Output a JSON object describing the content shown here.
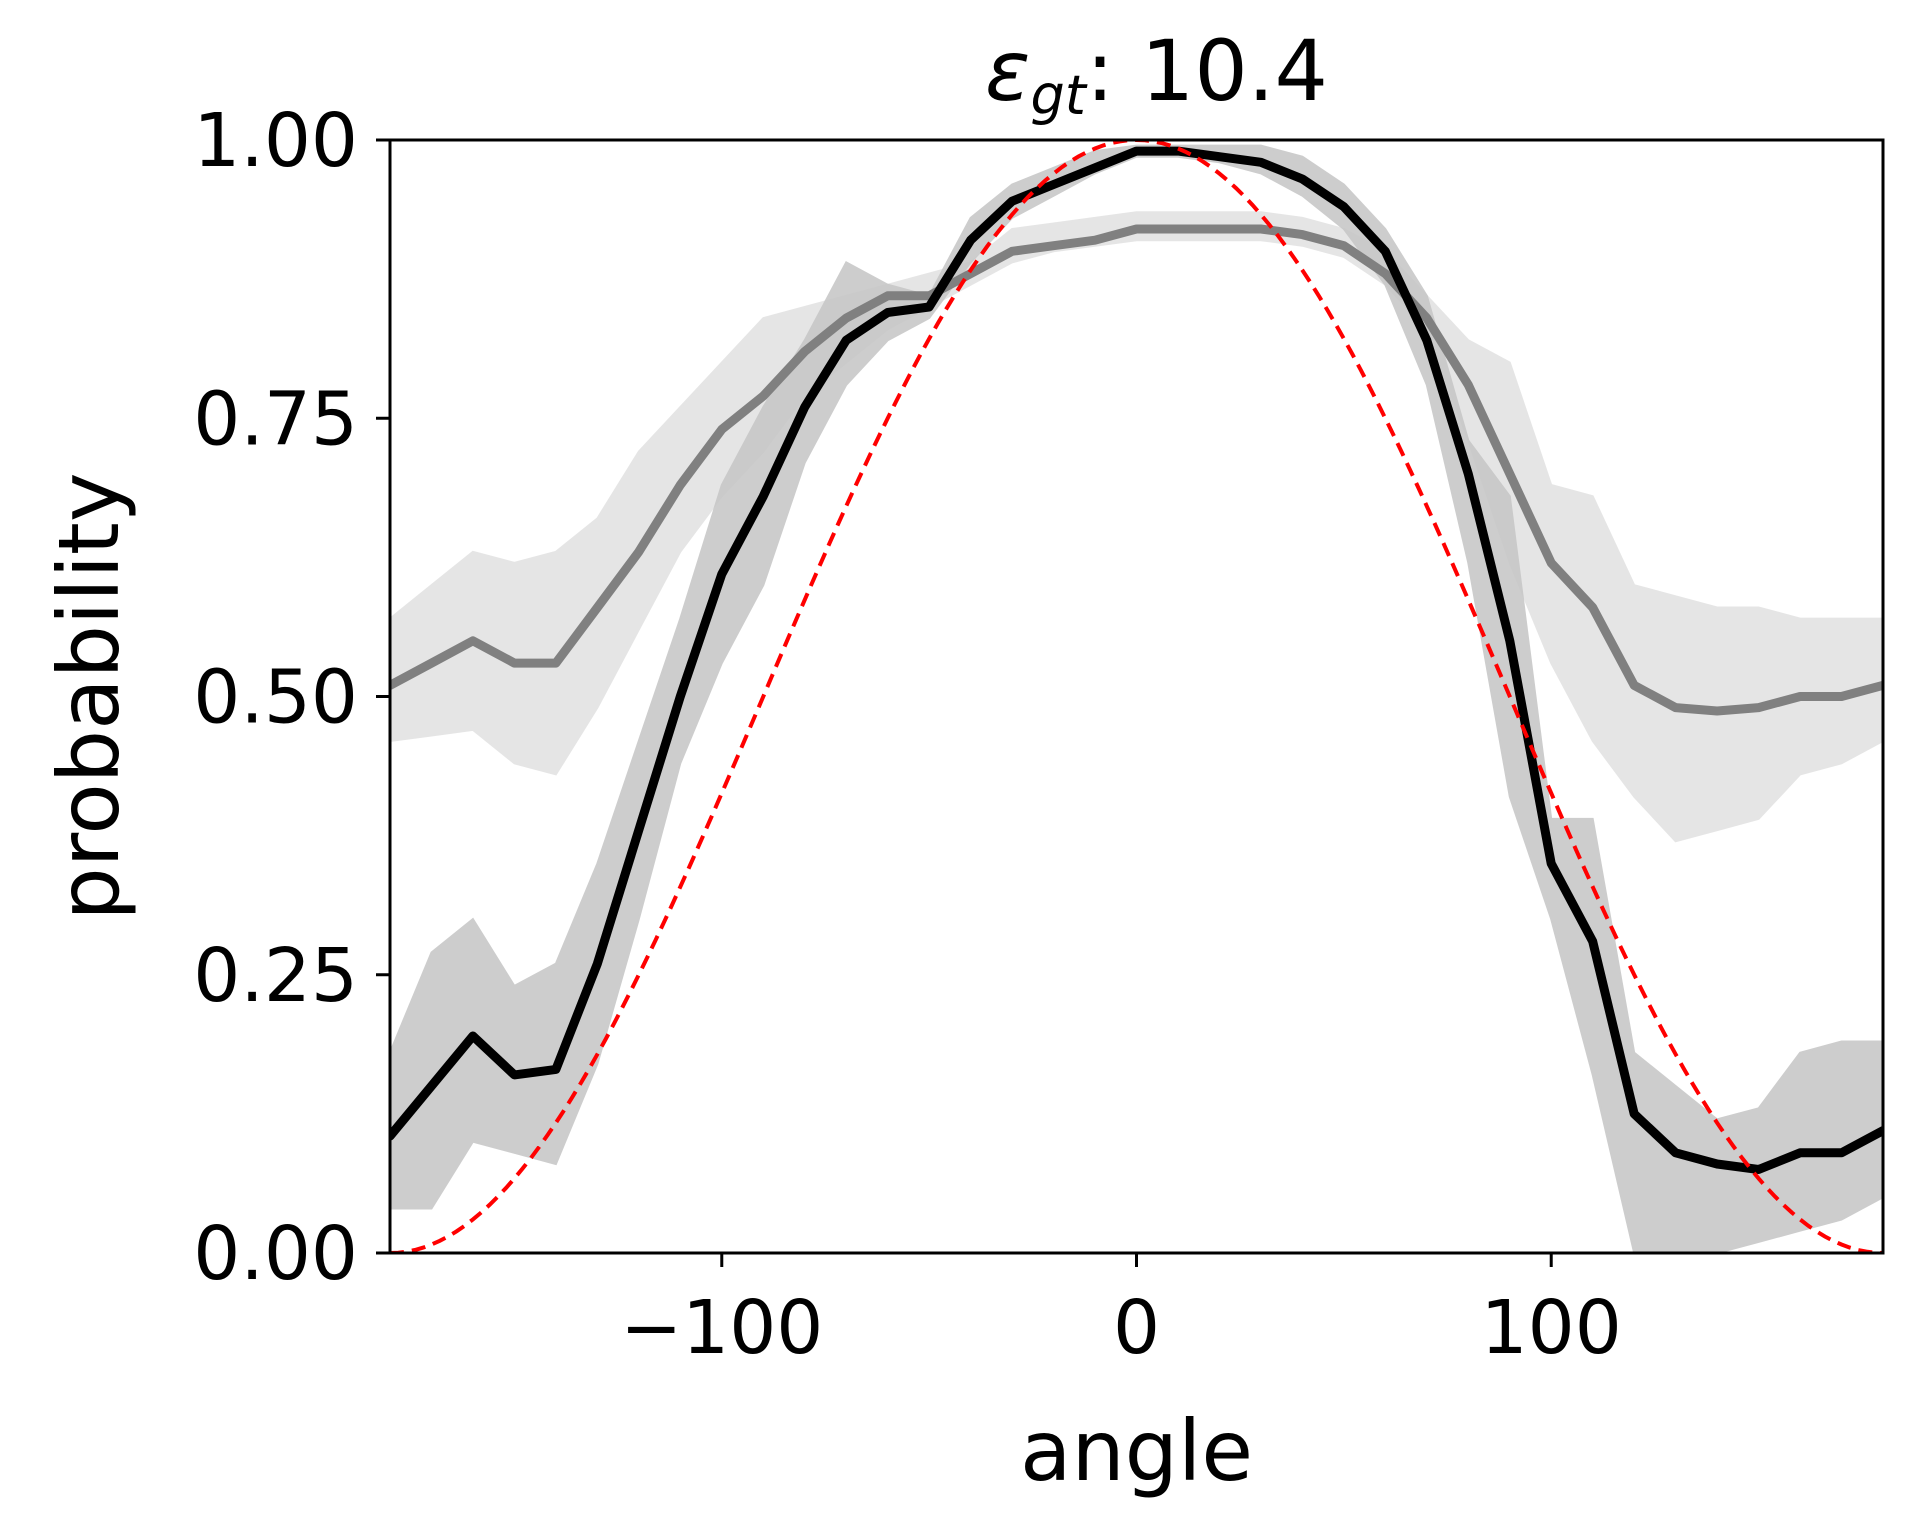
{
  "chart_data": {
    "type": "line",
    "title": "10.4",
    "title_symbol": "ε",
    "title_subscript": "gt",
    "xlabel": "angle",
    "ylabel": "probability",
    "xlim": [
      -180,
      180
    ],
    "ylim": [
      0,
      1
    ],
    "xticks": [
      -100,
      0,
      100
    ],
    "xtick_labels": [
      "−100",
      "0",
      "100"
    ],
    "yticks": [
      0,
      0.25,
      0.5,
      0.75,
      1.0
    ],
    "ytick_labels": [
      "0.00",
      "0.25",
      "0.50",
      "0.75",
      "1.00"
    ],
    "grid": false,
    "x": [
      -180,
      -170,
      -160,
      -150,
      -140,
      -130,
      -120,
      -110,
      -100,
      -90,
      -80,
      -70,
      -60,
      -50,
      -40,
      -30,
      -20,
      -10,
      0,
      10,
      20,
      30,
      40,
      50,
      60,
      70,
      80,
      90,
      100,
      110,
      120,
      130,
      140,
      150,
      160,
      170,
      180
    ],
    "series": [
      {
        "color": "#808080",
        "band_color": "#e3e3e3",
        "values": [
          0.51,
          0.53,
          0.55,
          0.53,
          0.53,
          0.58,
          0.63,
          0.69,
          0.74,
          0.77,
          0.81,
          0.84,
          0.86,
          0.86,
          0.88,
          0.9,
          0.905,
          0.91,
          0.92,
          0.92,
          0.92,
          0.92,
          0.915,
          0.905,
          0.88,
          0.84,
          0.78,
          0.7,
          0.62,
          0.58,
          0.51,
          0.49,
          0.487,
          0.49,
          0.5,
          0.5,
          0.51
        ],
        "lower": [
          0.46,
          0.465,
          0.47,
          0.44,
          0.43,
          0.49,
          0.56,
          0.63,
          0.68,
          0.72,
          0.77,
          0.8,
          0.83,
          0.85,
          0.87,
          0.89,
          0.9,
          0.905,
          0.91,
          0.91,
          0.91,
          0.91,
          0.905,
          0.895,
          0.87,
          0.83,
          0.73,
          0.62,
          0.53,
          0.46,
          0.41,
          0.37,
          0.38,
          0.39,
          0.43,
          0.44,
          0.46
        ],
        "upper": [
          0.57,
          0.6,
          0.63,
          0.62,
          0.63,
          0.66,
          0.72,
          0.76,
          0.8,
          0.84,
          0.85,
          0.86,
          0.87,
          0.88,
          0.89,
          0.92,
          0.925,
          0.93,
          0.935,
          0.935,
          0.935,
          0.935,
          0.93,
          0.92,
          0.9,
          0.86,
          0.82,
          0.8,
          0.69,
          0.68,
          0.6,
          0.59,
          0.58,
          0.58,
          0.57,
          0.57,
          0.57
        ]
      },
      {
        "color": "#000000",
        "band_color": "#c8c8c8",
        "values": [
          0.105,
          0.15,
          0.195,
          0.16,
          0.165,
          0.26,
          0.38,
          0.5,
          0.61,
          0.68,
          0.76,
          0.82,
          0.845,
          0.85,
          0.91,
          0.945,
          0.96,
          0.975,
          0.99,
          0.99,
          0.985,
          0.98,
          0.965,
          0.94,
          0.9,
          0.82,
          0.7,
          0.55,
          0.35,
          0.28,
          0.125,
          0.09,
          0.08,
          0.075,
          0.09,
          0.09,
          0.11
        ],
        "lower": [
          0.04,
          0.04,
          0.1,
          0.09,
          0.08,
          0.17,
          0.3,
          0.44,
          0.53,
          0.6,
          0.71,
          0.78,
          0.82,
          0.84,
          0.89,
          0.93,
          0.95,
          0.97,
          0.985,
          0.985,
          0.98,
          0.97,
          0.95,
          0.92,
          0.87,
          0.78,
          0.62,
          0.41,
          0.3,
          0.16,
          0.0,
          0.0,
          0.0,
          0.01,
          0.02,
          0.03,
          0.05
        ],
        "upper": [
          0.18,
          0.27,
          0.3,
          0.24,
          0.26,
          0.35,
          0.46,
          0.57,
          0.69,
          0.76,
          0.82,
          0.89,
          0.87,
          0.86,
          0.93,
          0.96,
          0.975,
          0.99,
          0.995,
          0.995,
          0.995,
          0.995,
          0.985,
          0.96,
          0.92,
          0.86,
          0.73,
          0.68,
          0.39,
          0.39,
          0.18,
          0.15,
          0.12,
          0.13,
          0.18,
          0.19,
          0.19
        ]
      },
      {
        "color": "#ff0000",
        "dashed": true,
        "function": "(1 + cos(x)) / 2"
      }
    ]
  }
}
